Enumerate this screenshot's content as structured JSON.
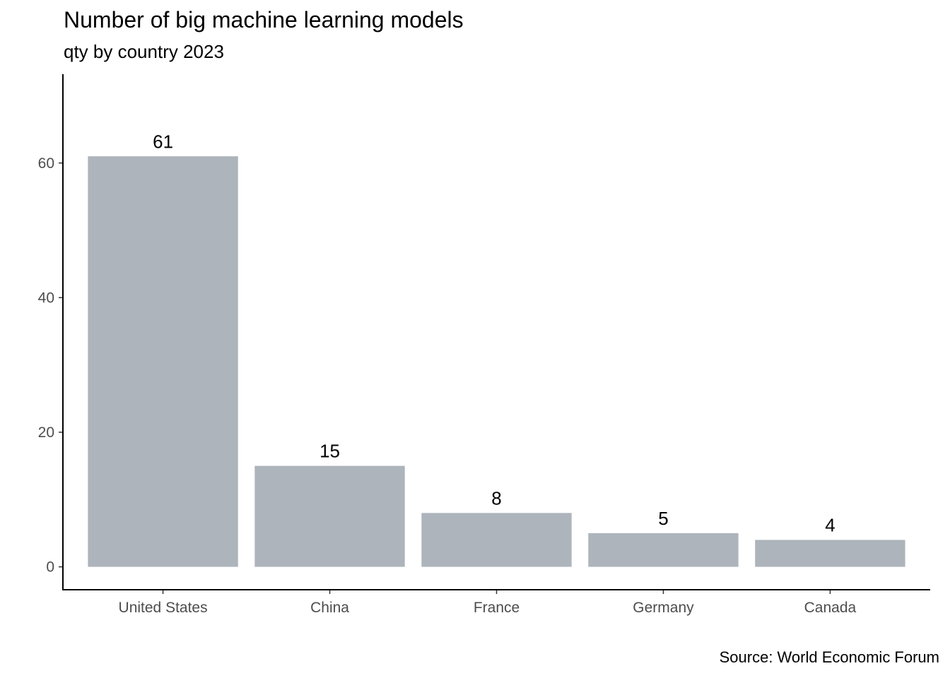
{
  "chart_data": {
    "type": "bar",
    "title": "Number of big machine learning models",
    "subtitle": "qty by country 2023",
    "caption": "Source: World Economic Forum",
    "categories": [
      "United States",
      "China",
      "France",
      "Germany",
      "Canada"
    ],
    "values": [
      61,
      15,
      8,
      5,
      4
    ],
    "data_labels": [
      "61",
      "15",
      "8",
      "5",
      "4"
    ],
    "y_ticks": [
      0,
      20,
      40,
      60
    ],
    "ylim": [
      -3.4,
      73.2
    ],
    "xlabel": "",
    "ylabel": "",
    "bar_color": "#adb4bb",
    "grid": false,
    "legend": "none"
  }
}
